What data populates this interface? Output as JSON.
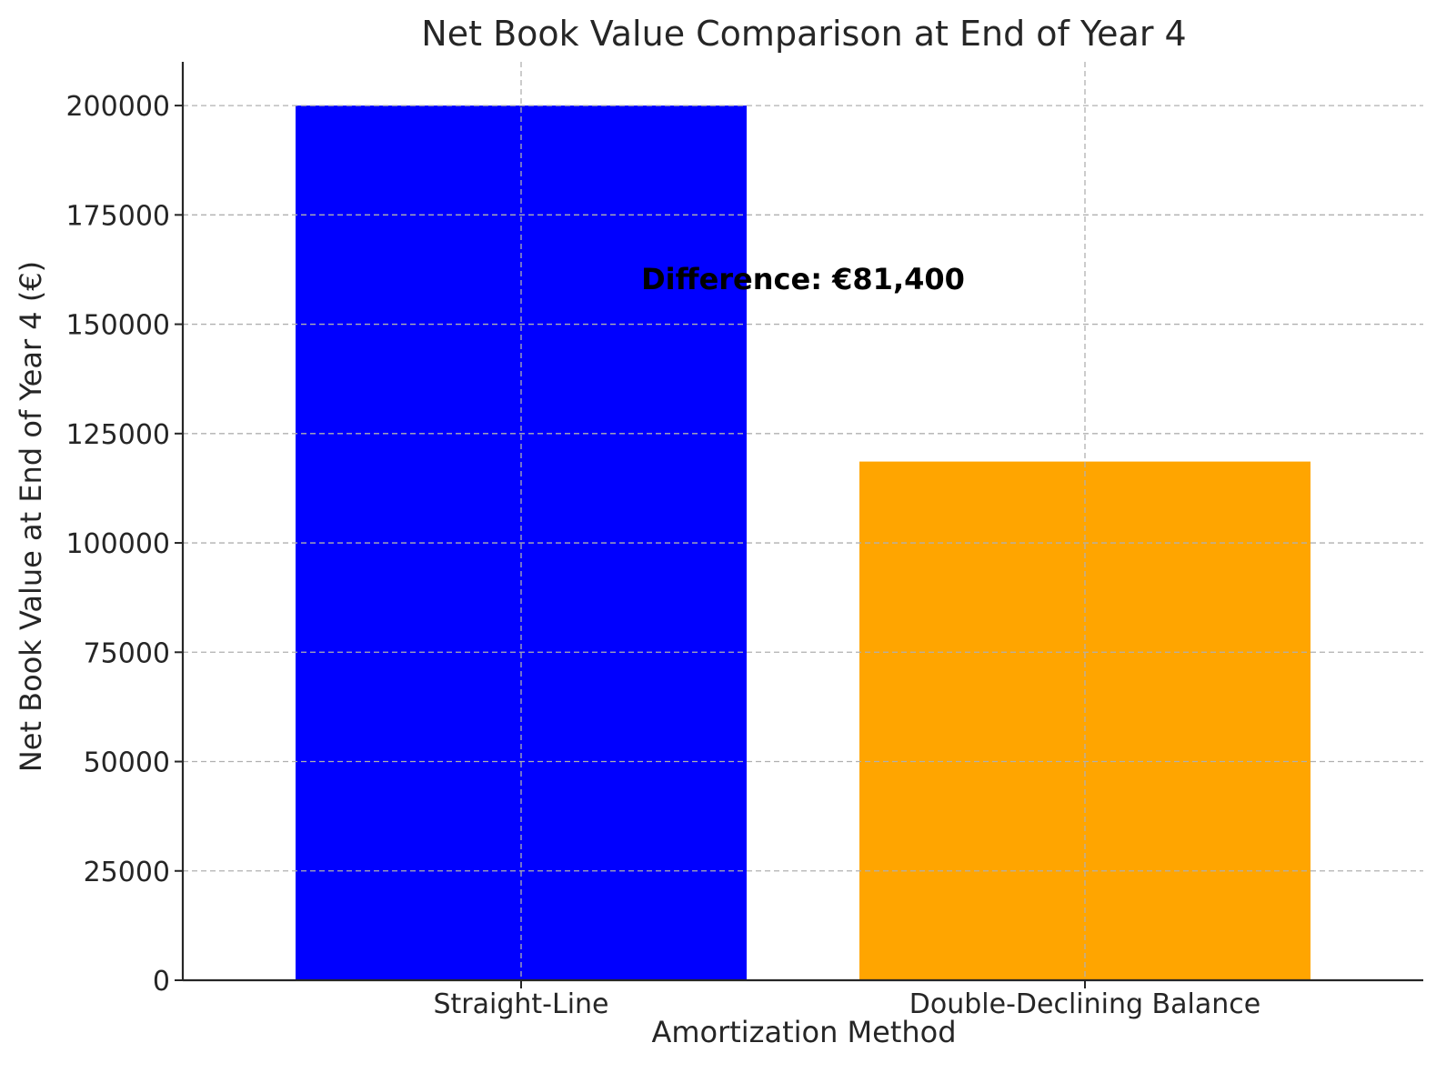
{
  "chart_data": {
    "type": "bar",
    "title": "Net Book Value Comparison at End of Year 4",
    "xlabel": "Amortization Method",
    "ylabel": "Net Book Value at End of Year 4 (€)",
    "categories": [
      "Straight-Line",
      "Double-Declining Balance"
    ],
    "values": [
      200000,
      118600
    ],
    "colors": [
      "#0000ff",
      "#ffa500"
    ],
    "ylim": [
      0,
      210000
    ],
    "yticks": [
      0,
      25000,
      50000,
      75000,
      100000,
      125000,
      150000,
      175000,
      200000
    ],
    "ytick_labels": [
      "0",
      "25000",
      "50000",
      "75000",
      "100000",
      "125000",
      "150000",
      "175000",
      "200000"
    ],
    "grid": true,
    "annotation": {
      "text": "Difference: €81,400",
      "x": 0.5,
      "y": 158000
    }
  }
}
